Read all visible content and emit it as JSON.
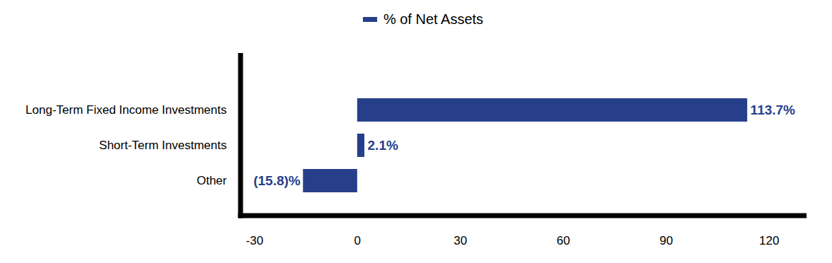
{
  "chart_data": {
    "type": "bar",
    "orientation": "horizontal",
    "categories": [
      "Long-Term Fixed Income Investments",
      "Short-Term Investments",
      "Other"
    ],
    "series": [
      {
        "name": "% of Net Assets",
        "color": "#273f8b",
        "values": [
          113.7,
          2.1,
          -15.8
        ],
        "value_labels": [
          "113.7%",
          "2.1%",
          "(15.8)%"
        ]
      }
    ],
    "xlim": [
      -34,
      131
    ],
    "xticks": [
      -30,
      0,
      30,
      60,
      90,
      120
    ],
    "legend": "top",
    "data_labels": true,
    "grid": false
  }
}
